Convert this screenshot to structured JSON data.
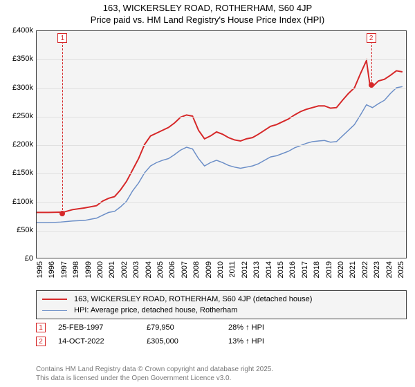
{
  "title": {
    "line1": "163, WICKERSLEY ROAD, ROTHERHAM, S60 4JP",
    "line2": "Price paid vs. HM Land Registry's House Price Index (HPI)"
  },
  "chart": {
    "type": "line",
    "background_color": "#f4f4f4",
    "border_color": "#414141",
    "grid_color": "#e0e0e0",
    "x_axis": {
      "min": 1995,
      "max": 2025.8,
      "tick_step": 1,
      "labels": [
        "1995",
        "1996",
        "1997",
        "1998",
        "1999",
        "2000",
        "2001",
        "2002",
        "2003",
        "2004",
        "2005",
        "2006",
        "2007",
        "2008",
        "2009",
        "2010",
        "2011",
        "2012",
        "2013",
        "2014",
        "2015",
        "2016",
        "2017",
        "2018",
        "2019",
        "2020",
        "2021",
        "2022",
        "2023",
        "2024",
        "2025"
      ],
      "fontsize": 11,
      "rotation": -90
    },
    "y_axis": {
      "min": 0,
      "max": 400000,
      "tick_step": 50000,
      "labels": [
        "£0",
        "£50k",
        "£100k",
        "£150k",
        "£200k",
        "£250k",
        "£300k",
        "£350k",
        "£400k"
      ],
      "fontsize": 11
    },
    "series": [
      {
        "name": "price_paid",
        "label": "163, WICKERSLEY ROAD, ROTHERHAM, S60 4JP (detached house)",
        "color": "#d62728",
        "line_width": 2,
        "xy": [
          [
            1995,
            80000
          ],
          [
            1996,
            80000
          ],
          [
            1997,
            80500
          ],
          [
            1997.15,
            79950
          ],
          [
            1998,
            85000
          ],
          [
            1999,
            88000
          ],
          [
            2000,
            92000
          ],
          [
            2000.5,
            100000
          ],
          [
            2001,
            105000
          ],
          [
            2001.5,
            108000
          ],
          [
            2002,
            120000
          ],
          [
            2002.5,
            135000
          ],
          [
            2003,
            155000
          ],
          [
            2003.5,
            175000
          ],
          [
            2004,
            200000
          ],
          [
            2004.5,
            215000
          ],
          [
            2005,
            220000
          ],
          [
            2005.5,
            225000
          ],
          [
            2006,
            230000
          ],
          [
            2006.5,
            238000
          ],
          [
            2007,
            248000
          ],
          [
            2007.5,
            252000
          ],
          [
            2008,
            250000
          ],
          [
            2008.5,
            225000
          ],
          [
            2009,
            210000
          ],
          [
            2009.5,
            215000
          ],
          [
            2010,
            222000
          ],
          [
            2010.5,
            218000
          ],
          [
            2011,
            212000
          ],
          [
            2011.5,
            208000
          ],
          [
            2012,
            206000
          ],
          [
            2012.5,
            210000
          ],
          [
            2013,
            212000
          ],
          [
            2013.5,
            218000
          ],
          [
            2014,
            225000
          ],
          [
            2014.5,
            232000
          ],
          [
            2015,
            235000
          ],
          [
            2015.5,
            240000
          ],
          [
            2016,
            245000
          ],
          [
            2016.5,
            252000
          ],
          [
            2017,
            258000
          ],
          [
            2017.5,
            262000
          ],
          [
            2018,
            265000
          ],
          [
            2018.5,
            268000
          ],
          [
            2019,
            268000
          ],
          [
            2019.5,
            264000
          ],
          [
            2020,
            265000
          ],
          [
            2020.5,
            278000
          ],
          [
            2021,
            290000
          ],
          [
            2021.5,
            300000
          ],
          [
            2022,
            325000
          ],
          [
            2022.5,
            348000
          ],
          [
            2022.79,
            305000
          ],
          [
            2023,
            302000
          ],
          [
            2023.5,
            312000
          ],
          [
            2024,
            315000
          ],
          [
            2024.5,
            322000
          ],
          [
            2025,
            330000
          ],
          [
            2025.5,
            328000
          ]
        ]
      },
      {
        "name": "hpi",
        "label": "HPI: Average price, detached house, Rotherham",
        "color": "#6b8ec7",
        "line_width": 1.5,
        "xy": [
          [
            1995,
            62000
          ],
          [
            1996,
            62000
          ],
          [
            1997,
            63000
          ],
          [
            1998,
            65000
          ],
          [
            1999,
            66000
          ],
          [
            2000,
            70000
          ],
          [
            2000.5,
            75000
          ],
          [
            2001,
            80000
          ],
          [
            2001.5,
            82000
          ],
          [
            2002,
            90000
          ],
          [
            2002.5,
            100000
          ],
          [
            2003,
            118000
          ],
          [
            2003.5,
            132000
          ],
          [
            2004,
            150000
          ],
          [
            2004.5,
            162000
          ],
          [
            2005,
            168000
          ],
          [
            2005.5,
            172000
          ],
          [
            2006,
            175000
          ],
          [
            2006.5,
            182000
          ],
          [
            2007,
            190000
          ],
          [
            2007.5,
            195000
          ],
          [
            2008,
            192000
          ],
          [
            2008.5,
            175000
          ],
          [
            2009,
            162000
          ],
          [
            2009.5,
            168000
          ],
          [
            2010,
            172000
          ],
          [
            2010.5,
            168000
          ],
          [
            2011,
            163000
          ],
          [
            2011.5,
            160000
          ],
          [
            2012,
            158000
          ],
          [
            2012.5,
            160000
          ],
          [
            2013,
            162000
          ],
          [
            2013.5,
            166000
          ],
          [
            2014,
            172000
          ],
          [
            2014.5,
            178000
          ],
          [
            2015,
            180000
          ],
          [
            2015.5,
            184000
          ],
          [
            2016,
            188000
          ],
          [
            2016.5,
            194000
          ],
          [
            2017,
            198000
          ],
          [
            2017.5,
            202000
          ],
          [
            2018,
            205000
          ],
          [
            2018.5,
            206000
          ],
          [
            2019,
            207000
          ],
          [
            2019.5,
            204000
          ],
          [
            2020,
            205000
          ],
          [
            2020.5,
            215000
          ],
          [
            2021,
            225000
          ],
          [
            2021.5,
            235000
          ],
          [
            2022,
            252000
          ],
          [
            2022.5,
            270000
          ],
          [
            2023,
            265000
          ],
          [
            2023.5,
            272000
          ],
          [
            2024,
            278000
          ],
          [
            2024.5,
            290000
          ],
          [
            2025,
            300000
          ],
          [
            2025.5,
            302000
          ]
        ]
      }
    ],
    "markers": [
      {
        "n": "1",
        "x": 1997.15,
        "y": 79950
      },
      {
        "n": "2",
        "x": 2022.79,
        "y": 305000
      }
    ]
  },
  "legend": {
    "border_color": "#414141",
    "background_color": "#f4f4f4",
    "fontsize": 11
  },
  "events": [
    {
      "n": "1",
      "date": "25-FEB-1997",
      "price": "£79,950",
      "delta": "28% ↑ HPI"
    },
    {
      "n": "2",
      "date": "14-OCT-2022",
      "price": "£305,000",
      "delta": "13% ↑ HPI"
    }
  ],
  "footer": {
    "line1": "Contains HM Land Registry data © Crown copyright and database right 2025.",
    "line2": "This data is licensed under the Open Government Licence v3.0."
  }
}
